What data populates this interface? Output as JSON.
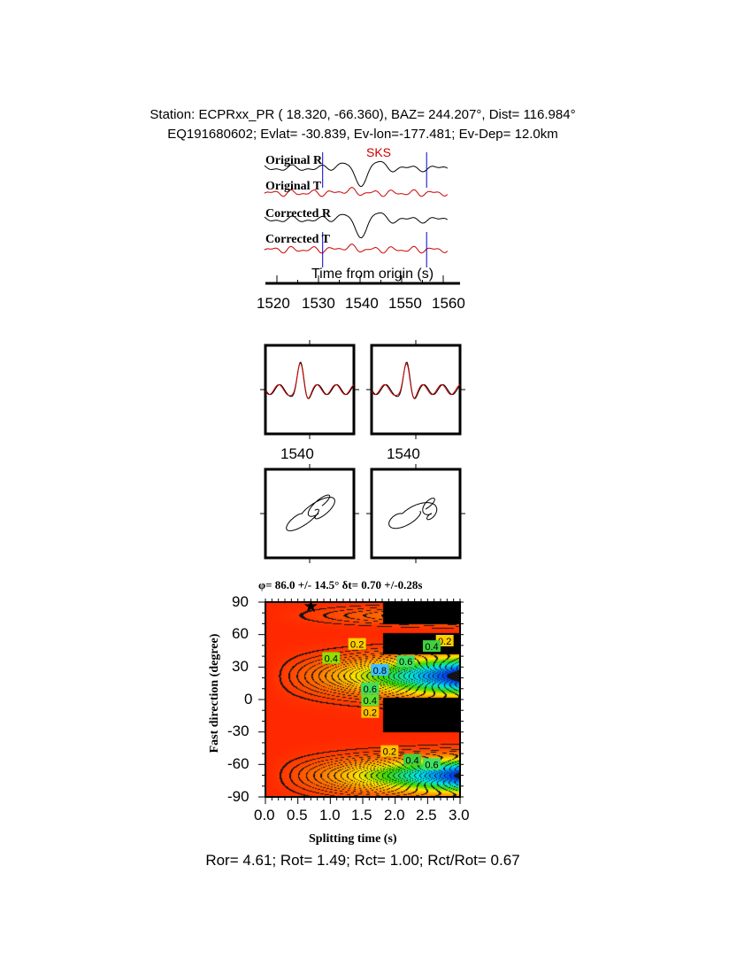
{
  "header": {
    "line1": "Station: ECPRxx_PR (  18.320,  -66.360), BAZ=  244.207°, Dist=  116.984°",
    "line2": "EQ191680602; Evlat= -30.839, Ev-lon=-177.481; Ev-Dep= 12.0km"
  },
  "traces": {
    "phase": "SKS",
    "labels": [
      "Original R",
      "Original T",
      "Corrected R",
      "Corrected T"
    ],
    "xlabel": "Time from origin (s)",
    "xticks": [
      "1520",
      "1530",
      "1540",
      "1550",
      "1560"
    ],
    "window_start": 1531,
    "window_end": 1556,
    "colors": {
      "radial": "#000000",
      "transverse": "#cc0000",
      "window": "#0000cc"
    }
  },
  "particle": {
    "xtick_labels": [
      "1540",
      "1540"
    ]
  },
  "chart_data": {
    "type": "heatmap",
    "title": "φ= 86.0 +/- 14.5° δt= 0.70 +/-0.28s",
    "xlabel": "Splitting time (s)",
    "ylabel": "Fast direction (degree)",
    "xlim": [
      0,
      3
    ],
    "ylim": [
      -90,
      90
    ],
    "xticks": [
      "0.0",
      "0.5",
      "1.0",
      "1.5",
      "2.0",
      "2.5",
      "3.0"
    ],
    "yticks": [
      "90",
      "60",
      "30",
      "0",
      "-30",
      "-60",
      "-90"
    ],
    "best_fit": {
      "dt": 0.7,
      "phi": 86.0
    },
    "contour_labels": [
      "0.2",
      "0.4",
      "0.2",
      "0.4",
      "0.6",
      "0.8",
      "0.6",
      "0.4",
      "0.2",
      "0.2",
      "0.4",
      "0.6",
      "0.2"
    ],
    "colormap": "rainbow"
  },
  "footer": "Ror= 4.61; Rot= 1.49; Rct= 1.00; Rct/Rot= 0.67"
}
